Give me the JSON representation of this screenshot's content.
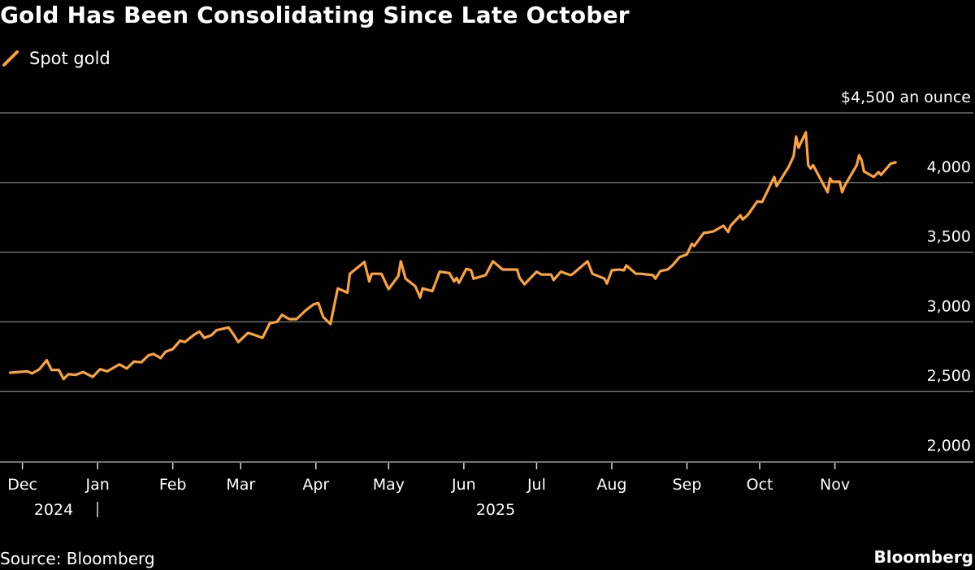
{
  "title": "Gold Has Been Consolidating Since Late October",
  "source": "Source: Bloomberg",
  "brand": "Bloomberg",
  "chart_data": {
    "type": "line",
    "title": "Gold Has Been Consolidating Since Late October",
    "legend": {
      "placement": "top-left",
      "entries": [
        "Spot gold"
      ]
    },
    "y_unit_label": "$4,500 an ounce",
    "ylim": [
      2000,
      4500
    ],
    "y_ticks": [
      2000,
      2500,
      3000,
      3500,
      4000,
      4500
    ],
    "y_tick_labels": [
      "2,000",
      "2,500",
      "3,000",
      "3,500",
      "4,000",
      "$4,500 an ounce"
    ],
    "x_ticks": [
      "2024-12-01",
      "2025-01-01",
      "2025-02-01",
      "2025-03-01",
      "2025-04-01",
      "2025-05-01",
      "2025-06-01",
      "2025-07-01",
      "2025-08-01",
      "2025-09-01",
      "2025-10-01",
      "2025-11-01"
    ],
    "x_tick_labels": [
      "Dec",
      "Jan",
      "Feb",
      "Mar",
      "Apr",
      "May",
      "Jun",
      "Jul",
      "Aug",
      "Sep",
      "Oct",
      "Nov"
    ],
    "year_labels": [
      "2024",
      "2025"
    ],
    "grid": true,
    "colors": {
      "series": "#fca33a",
      "grid": "#6e6e6e",
      "axis": "#9a9a9a",
      "background": "#000000"
    },
    "series": [
      {
        "name": "Spot gold",
        "points": [
          [
            "2024-11-26",
            2635
          ],
          [
            "2024-12-03",
            2645
          ],
          [
            "2024-12-05",
            2630
          ],
          [
            "2024-12-08",
            2660
          ],
          [
            "2024-12-11",
            2725
          ],
          [
            "2024-12-13",
            2655
          ],
          [
            "2024-12-16",
            2655
          ],
          [
            "2024-12-18",
            2590
          ],
          [
            "2024-12-20",
            2625
          ],
          [
            "2024-12-23",
            2620
          ],
          [
            "2024-12-26",
            2640
          ],
          [
            "2024-12-30",
            2605
          ],
          [
            "2025-01-02",
            2660
          ],
          [
            "2025-01-05",
            2645
          ],
          [
            "2025-01-10",
            2695
          ],
          [
            "2025-01-13",
            2665
          ],
          [
            "2025-01-16",
            2715
          ],
          [
            "2025-01-19",
            2710
          ],
          [
            "2025-01-22",
            2760
          ],
          [
            "2025-01-24",
            2770
          ],
          [
            "2025-01-27",
            2740
          ],
          [
            "2025-01-29",
            2785
          ],
          [
            "2025-02-01",
            2805
          ],
          [
            "2025-02-04",
            2865
          ],
          [
            "2025-02-06",
            2855
          ],
          [
            "2025-02-10",
            2910
          ],
          [
            "2025-02-12",
            2930
          ],
          [
            "2025-02-14",
            2885
          ],
          [
            "2025-02-17",
            2905
          ],
          [
            "2025-02-19",
            2940
          ],
          [
            "2025-02-24",
            2960
          ],
          [
            "2025-02-26",
            2910
          ],
          [
            "2025-02-28",
            2855
          ],
          [
            "2025-03-04",
            2920
          ],
          [
            "2025-03-06",
            2910
          ],
          [
            "2025-03-10",
            2885
          ],
          [
            "2025-03-13",
            2990
          ],
          [
            "2025-03-16",
            3000
          ],
          [
            "2025-03-18",
            3050
          ],
          [
            "2025-03-21",
            3020
          ],
          [
            "2025-03-24",
            3020
          ],
          [
            "2025-03-28",
            3085
          ],
          [
            "2025-03-31",
            3125
          ],
          [
            "2025-04-02",
            3135
          ],
          [
            "2025-04-04",
            3035
          ],
          [
            "2025-04-07",
            2985
          ],
          [
            "2025-04-10",
            3240
          ],
          [
            "2025-04-14",
            3210
          ],
          [
            "2025-04-15",
            3345
          ],
          [
            "2025-04-21",
            3430
          ],
          [
            "2025-04-23",
            3290
          ],
          [
            "2025-04-24",
            3345
          ],
          [
            "2025-04-28",
            3345
          ],
          [
            "2025-05-01",
            3235
          ],
          [
            "2025-05-05",
            3330
          ],
          [
            "2025-05-06",
            3435
          ],
          [
            "2025-05-08",
            3310
          ],
          [
            "2025-05-12",
            3255
          ],
          [
            "2025-05-14",
            3175
          ],
          [
            "2025-05-15",
            3240
          ],
          [
            "2025-05-19",
            3220
          ],
          [
            "2025-05-21",
            3310
          ],
          [
            "2025-05-22",
            3360
          ],
          [
            "2025-05-26",
            3350
          ],
          [
            "2025-05-28",
            3290
          ],
          [
            "2025-05-29",
            3315
          ],
          [
            "2025-05-30",
            3280
          ],
          [
            "2025-06-02",
            3380
          ],
          [
            "2025-06-04",
            3370
          ],
          [
            "2025-06-05",
            3310
          ],
          [
            "2025-06-10",
            3335
          ],
          [
            "2025-06-13",
            3435
          ],
          [
            "2025-06-17",
            3375
          ],
          [
            "2025-06-23",
            3375
          ],
          [
            "2025-06-24",
            3315
          ],
          [
            "2025-06-26",
            3270
          ],
          [
            "2025-07-01",
            3360
          ],
          [
            "2025-07-03",
            3340
          ],
          [
            "2025-07-07",
            3340
          ],
          [
            "2025-07-08",
            3300
          ],
          [
            "2025-07-11",
            3360
          ],
          [
            "2025-07-15",
            3335
          ],
          [
            "2025-07-16",
            3345
          ],
          [
            "2025-07-18",
            3375
          ],
          [
            "2025-07-22",
            3435
          ],
          [
            "2025-07-24",
            3345
          ],
          [
            "2025-07-29",
            3310
          ],
          [
            "2025-07-30",
            3275
          ],
          [
            "2025-08-01",
            3370
          ],
          [
            "2025-08-04",
            3375
          ],
          [
            "2025-08-06",
            3370
          ],
          [
            "2025-08-07",
            3405
          ],
          [
            "2025-08-11",
            3345
          ],
          [
            "2025-08-13",
            3345
          ],
          [
            "2025-08-18",
            3335
          ],
          [
            "2025-08-19",
            3310
          ],
          [
            "2025-08-21",
            3365
          ],
          [
            "2025-08-24",
            3375
          ],
          [
            "2025-08-26",
            3405
          ],
          [
            "2025-08-29",
            3465
          ],
          [
            "2025-09-01",
            3485
          ],
          [
            "2025-09-03",
            3560
          ],
          [
            "2025-09-04",
            3545
          ],
          [
            "2025-09-08",
            3640
          ],
          [
            "2025-09-09",
            3640
          ],
          [
            "2025-09-12",
            3650
          ],
          [
            "2025-09-16",
            3690
          ],
          [
            "2025-09-18",
            3645
          ],
          [
            "2025-09-19",
            3690
          ],
          [
            "2025-09-23",
            3765
          ],
          [
            "2025-09-24",
            3735
          ],
          [
            "2025-09-26",
            3765
          ],
          [
            "2025-09-30",
            3865
          ],
          [
            "2025-10-02",
            3860
          ],
          [
            "2025-10-07",
            4040
          ],
          [
            "2025-10-08",
            3975
          ],
          [
            "2025-10-13",
            4115
          ],
          [
            "2025-10-15",
            4190
          ],
          [
            "2025-10-16",
            4330
          ],
          [
            "2025-10-17",
            4250
          ],
          [
            "2025-10-20",
            4360
          ],
          [
            "2025-10-21",
            4125
          ],
          [
            "2025-10-22",
            4100
          ],
          [
            "2025-10-23",
            4125
          ],
          [
            "2025-10-29",
            3930
          ],
          [
            "2025-10-30",
            4030
          ],
          [
            "2025-10-31",
            4005
          ],
          [
            "2025-11-03",
            4005
          ],
          [
            "2025-11-04",
            3930
          ],
          [
            "2025-11-05",
            3975
          ],
          [
            "2025-11-10",
            4125
          ],
          [
            "2025-11-11",
            4195
          ],
          [
            "2025-11-12",
            4160
          ],
          [
            "2025-11-13",
            4080
          ],
          [
            "2025-11-17",
            4040
          ],
          [
            "2025-11-19",
            4075
          ],
          [
            "2025-11-20",
            4055
          ],
          [
            "2025-11-24",
            4135
          ],
          [
            "2025-11-26",
            4145
          ]
        ]
      }
    ]
  }
}
